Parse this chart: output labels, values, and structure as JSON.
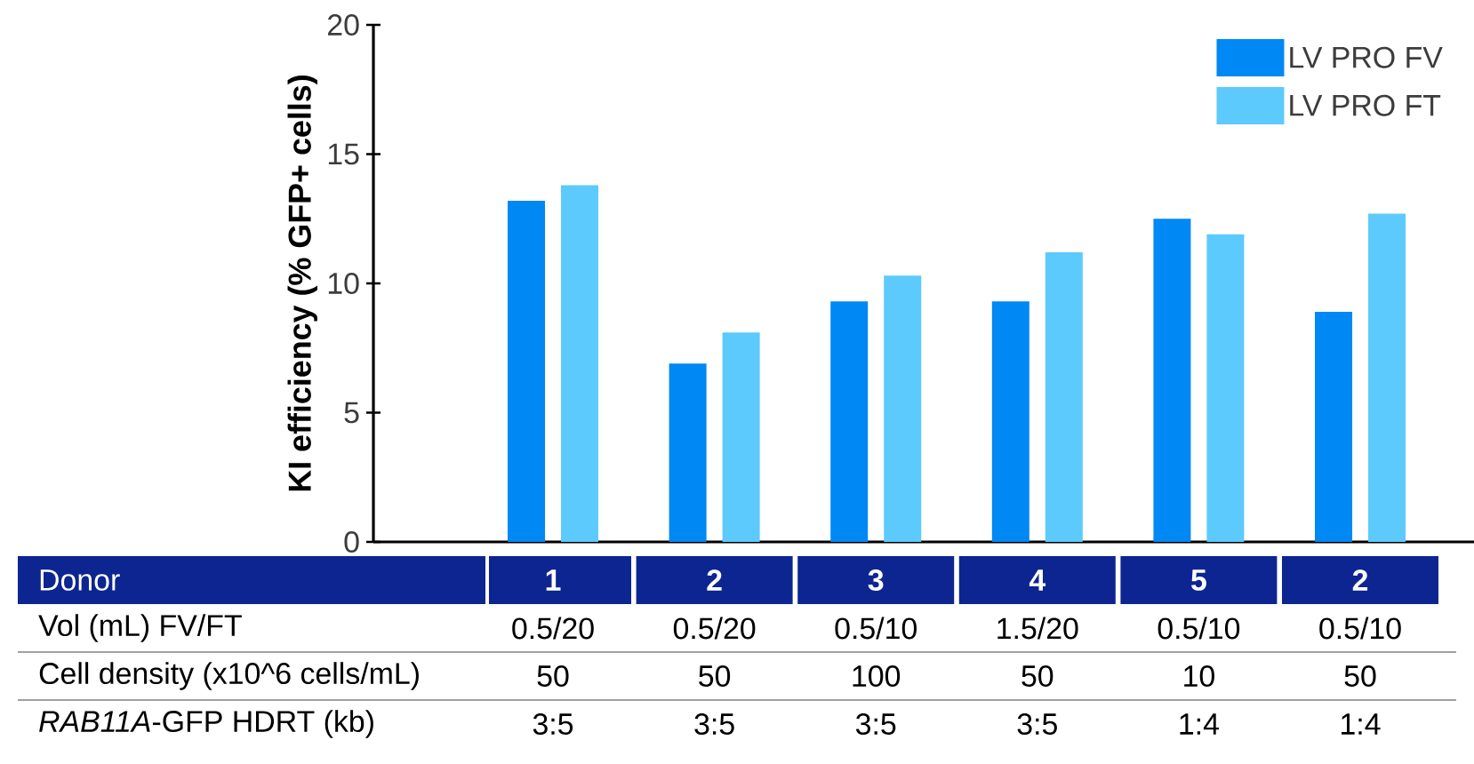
{
  "chart_data": {
    "type": "bar",
    "ylabel": "KI efficiency (% GFP+ cells)",
    "categories": [
      "1",
      "2",
      "3",
      "4",
      "5",
      "2"
    ],
    "series": [
      {
        "name": "LV PRO FV",
        "color": "#0088f5",
        "values": [
          13.2,
          6.9,
          9.3,
          9.3,
          12.5,
          8.9
        ]
      },
      {
        "name": "LV PRO FT",
        "color": "#5ccafc",
        "values": [
          13.8,
          8.1,
          10.3,
          11.2,
          11.9,
          12.7
        ]
      }
    ],
    "ylim": [
      0,
      20
    ],
    "yticks": [
      0,
      5,
      10,
      15,
      20
    ],
    "legend": "top right",
    "annotations": [
      "Donor",
      "Vol (mL) FV/FT",
      "0.5/20",
      "0.5/20",
      "0.5/10",
      "1.5/20",
      "0.5/10",
      "0.5/10",
      "Cell density (x10^6 cells/mL)",
      "50",
      "50",
      "100",
      "50",
      "10",
      "50",
      "*RAB11A*-GFP HDRT (kb)",
      "3:5",
      "3:5",
      "3:5",
      "3:5",
      "1:4",
      "1:4"
    ]
  }
}
